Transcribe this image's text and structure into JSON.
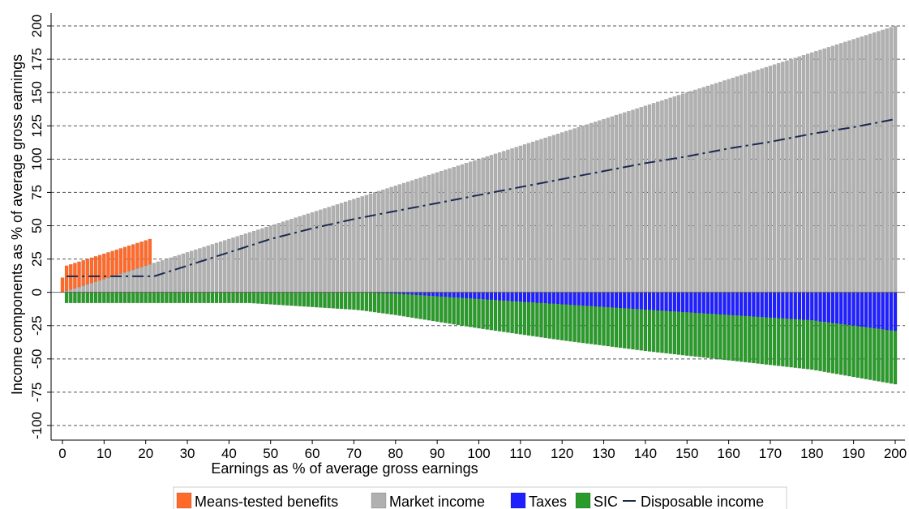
{
  "chart_data": {
    "type": "bar",
    "subtype": "stacked-bar-with-line",
    "xlabel": "Earnings as % of average gross earnings",
    "ylabel": "Income components as % of average gross earnings",
    "xlim": [
      0,
      200
    ],
    "ylim": [
      -100,
      200
    ],
    "x_ticks": [
      0,
      10,
      20,
      30,
      40,
      50,
      60,
      70,
      80,
      90,
      100,
      110,
      120,
      130,
      140,
      150,
      160,
      170,
      180,
      190,
      200
    ],
    "y_ticks": [
      -100,
      -75,
      -50,
      -25,
      0,
      25,
      50,
      75,
      100,
      125,
      150,
      175,
      200
    ],
    "grid": "horizontal-dashed",
    "legend_position": "bottom",
    "x_step": 1,
    "series": [
      {
        "name": "Means-tested benefits",
        "color": "#ff6a2b",
        "kind": "bar",
        "points": [
          [
            0,
            11
          ],
          [
            1,
            19
          ],
          [
            5,
            19
          ],
          [
            10,
            19
          ],
          [
            15,
            19
          ],
          [
            20,
            19
          ],
          [
            21,
            19
          ],
          [
            22,
            0
          ]
        ]
      },
      {
        "name": "Market income",
        "color": "#b0b0b0",
        "kind": "bar",
        "points": [
          [
            0,
            0
          ],
          [
            200,
            200
          ]
        ]
      },
      {
        "name": "Taxes",
        "color": "#1f1fff",
        "kind": "bar",
        "points": [
          [
            0,
            0
          ],
          [
            72,
            0
          ],
          [
            80,
            -1
          ],
          [
            90,
            -3
          ],
          [
            100,
            -5
          ],
          [
            120,
            -9
          ],
          [
            140,
            -13
          ],
          [
            160,
            -17
          ],
          [
            180,
            -21
          ],
          [
            200,
            -29
          ]
        ]
      },
      {
        "name": "SIC",
        "color": "#2a9a2a",
        "kind": "bar",
        "points": [
          [
            1,
            -8
          ],
          [
            45,
            -8
          ],
          [
            50,
            -9
          ],
          [
            60,
            -11
          ],
          [
            70,
            -13
          ],
          [
            80,
            -16
          ],
          [
            100,
            -22
          ],
          [
            120,
            -27
          ],
          [
            140,
            -31
          ],
          [
            160,
            -34
          ],
          [
            180,
            -37
          ],
          [
            200,
            -40
          ]
        ]
      },
      {
        "name": "Disposable income",
        "color": "#1a2a4f",
        "kind": "line",
        "points": [
          [
            1,
            12
          ],
          [
            22,
            12
          ],
          [
            30,
            20
          ],
          [
            40,
            30
          ],
          [
            50,
            40
          ],
          [
            60,
            48
          ],
          [
            70,
            55
          ],
          [
            80,
            61
          ],
          [
            90,
            67
          ],
          [
            100,
            73
          ],
          [
            110,
            79
          ],
          [
            120,
            85
          ],
          [
            130,
            91
          ],
          [
            140,
            97
          ],
          [
            150,
            102
          ],
          [
            160,
            108
          ],
          [
            170,
            113
          ],
          [
            180,
            119
          ],
          [
            190,
            124
          ],
          [
            200,
            130
          ]
        ]
      }
    ]
  }
}
